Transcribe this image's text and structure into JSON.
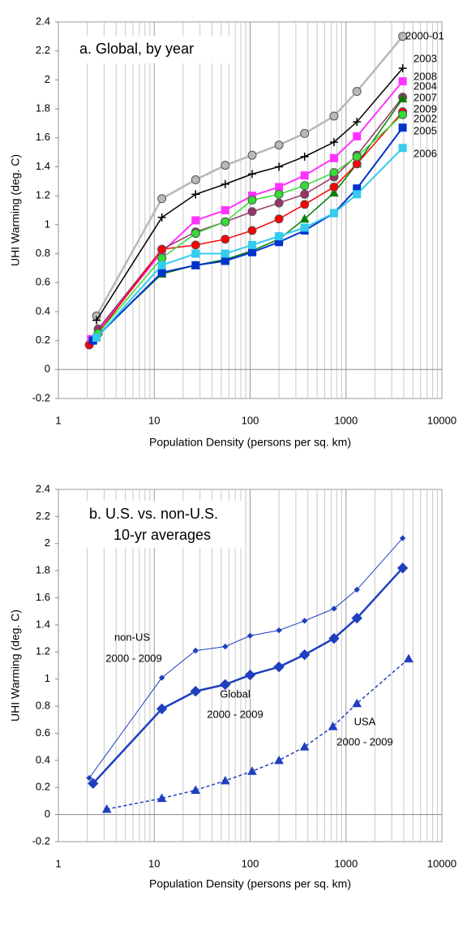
{
  "chart_data": [
    {
      "type": "line",
      "title": "a.  Global, by year",
      "xlabel": "Population Density (persons per sq. km)",
      "ylabel": "UHI Warming (deg. C)",
      "xscale": "log",
      "xlim": [
        1,
        10000
      ],
      "xticks": [
        1,
        10,
        100,
        1000,
        10000
      ],
      "ylim": [
        -0.2,
        2.4
      ],
      "yticks": [
        -0.2,
        0,
        0.2,
        0.4,
        0.6,
        0.8,
        1,
        1.2,
        1.4,
        1.6,
        1.8,
        2,
        2.2,
        2.4
      ],
      "grid": true,
      "series": [
        {
          "name": "2000-01",
          "color": "#b8b8b8",
          "marker": "circle",
          "linewidth": 2.5,
          "linestyle": "solid",
          "x": [
            2.5,
            12,
            27,
            55,
            105,
            200,
            370,
            750,
            1300,
            3900
          ],
          "values": [
            0.37,
            1.18,
            1.31,
            1.41,
            1.48,
            1.55,
            1.63,
            1.75,
            1.92,
            2.3
          ]
        },
        {
          "name": "2003",
          "color": "#000000",
          "marker": "plus",
          "linewidth": 1.5,
          "linestyle": "solid",
          "x": [
            2.5,
            12,
            27,
            55,
            105,
            200,
            370,
            750,
            1300,
            3900
          ],
          "values": [
            0.34,
            1.05,
            1.21,
            1.28,
            1.35,
            1.4,
            1.47,
            1.57,
            1.71,
            2.08
          ]
        },
        {
          "name": "2008",
          "color": "#ff33ff",
          "marker": "square",
          "linewidth": 2,
          "linestyle": "solid",
          "x": [
            2.2,
            12,
            27,
            55,
            105,
            200,
            370,
            750,
            1300,
            3900
          ],
          "values": [
            0.21,
            0.81,
            1.03,
            1.1,
            1.2,
            1.26,
            1.34,
            1.46,
            1.61,
            1.99
          ]
        },
        {
          "name": "2004",
          "color": "#993366",
          "marker": "circle",
          "linewidth": 1.5,
          "linestyle": "solid",
          "x": [
            2.6,
            12,
            27,
            55,
            105,
            200,
            370,
            750,
            1300,
            3900
          ],
          "values": [
            0.28,
            0.83,
            0.95,
            1.02,
            1.09,
            1.15,
            1.21,
            1.33,
            1.48,
            1.88
          ]
        },
        {
          "name": "2007",
          "color": "#008000",
          "marker": "triangle",
          "linewidth": 1.5,
          "linestyle": "solid",
          "x": [
            2.4,
            12,
            27,
            55,
            105,
            200,
            370,
            750,
            1300,
            3900
          ],
          "values": [
            0.22,
            0.66,
            0.72,
            0.76,
            0.82,
            0.9,
            1.04,
            1.22,
            1.42,
            1.87
          ]
        },
        {
          "name": "2009",
          "color": "#ff0000",
          "marker": "circle",
          "linewidth": 1.5,
          "linestyle": "solid",
          "x": [
            2.1,
            12,
            27,
            55,
            105,
            200,
            370,
            750,
            1300,
            3900
          ],
          "values": [
            0.17,
            0.83,
            0.86,
            0.9,
            0.96,
            1.04,
            1.14,
            1.26,
            1.42,
            1.78
          ]
        },
        {
          "name": "2002",
          "color": "#33dd33",
          "marker": "circle",
          "linewidth": 1.5,
          "linestyle": "solid",
          "x": [
            2.6,
            12,
            27,
            55,
            105,
            200,
            370,
            750,
            1300,
            3900
          ],
          "values": [
            0.25,
            0.77,
            0.94,
            1.02,
            1.17,
            1.21,
            1.27,
            1.36,
            1.47,
            1.76
          ]
        },
        {
          "name": "2005",
          "color": "#0033cc",
          "marker": "square",
          "linewidth": 2,
          "linestyle": "solid",
          "x": [
            2.3,
            12,
            27,
            55,
            105,
            200,
            370,
            750,
            1300,
            3900
          ],
          "values": [
            0.2,
            0.67,
            0.72,
            0.75,
            0.81,
            0.88,
            0.96,
            1.08,
            1.25,
            1.67
          ]
        },
        {
          "name": "2006",
          "color": "#33ccee",
          "marker": "square",
          "linewidth": 2,
          "linestyle": "solid",
          "x": [
            2.5,
            12,
            27,
            55,
            105,
            200,
            370,
            750,
            1300,
            3900
          ],
          "values": [
            0.22,
            0.72,
            0.8,
            0.8,
            0.86,
            0.92,
            0.98,
            1.08,
            1.21,
            1.53
          ]
        }
      ]
    },
    {
      "type": "line",
      "title": [
        "b.  U.S. vs. non-U.S.",
        "10-yr averages"
      ],
      "xlabel": "Population Density (persons per sq. km)",
      "ylabel": "UHI Warming (deg. C)",
      "xscale": "log",
      "xlim": [
        1,
        10000
      ],
      "xticks": [
        1,
        10,
        100,
        1000,
        10000
      ],
      "ylim": [
        -0.2,
        2.4
      ],
      "yticks": [
        -0.2,
        0,
        0.2,
        0.4,
        0.6,
        0.8,
        1,
        1.2,
        1.4,
        1.6,
        1.8,
        2,
        2.2,
        2.4
      ],
      "grid": true,
      "annotations": [
        [
          "non-US",
          "2000 - 2009"
        ],
        [
          "Global",
          "2000 - 2009"
        ],
        [
          "USA",
          "2000 - 2009"
        ]
      ],
      "series": [
        {
          "color": "#1f3fbf",
          "marker": "smalldiamond",
          "linewidth": 1,
          "linestyle": "solid",
          "x": [
            2.1,
            12,
            27,
            55,
            100,
            200,
            370,
            750,
            1300,
            3900
          ],
          "values": [
            0.27,
            1.01,
            1.21,
            1.24,
            1.32,
            1.36,
            1.43,
            1.52,
            1.66,
            2.04
          ]
        },
        {
          "color": "#1f3fbf",
          "marker": "diamond",
          "linewidth": 2.5,
          "linestyle": "solid",
          "x": [
            2.3,
            12,
            27,
            55,
            100,
            200,
            370,
            750,
            1300,
            3900
          ],
          "values": [
            0.23,
            0.78,
            0.91,
            0.96,
            1.03,
            1.09,
            1.18,
            1.3,
            1.45,
            1.82
          ]
        },
        {
          "color": "#1f3fbf",
          "marker": "triangle",
          "linewidth": 1.5,
          "linestyle": "dashed",
          "x": [
            3.2,
            12,
            27,
            55,
            105,
            200,
            370,
            730,
            1300,
            4500
          ],
          "values": [
            0.04,
            0.12,
            0.18,
            0.25,
            0.32,
            0.4,
            0.5,
            0.65,
            0.82,
            1.15
          ]
        }
      ]
    }
  ]
}
